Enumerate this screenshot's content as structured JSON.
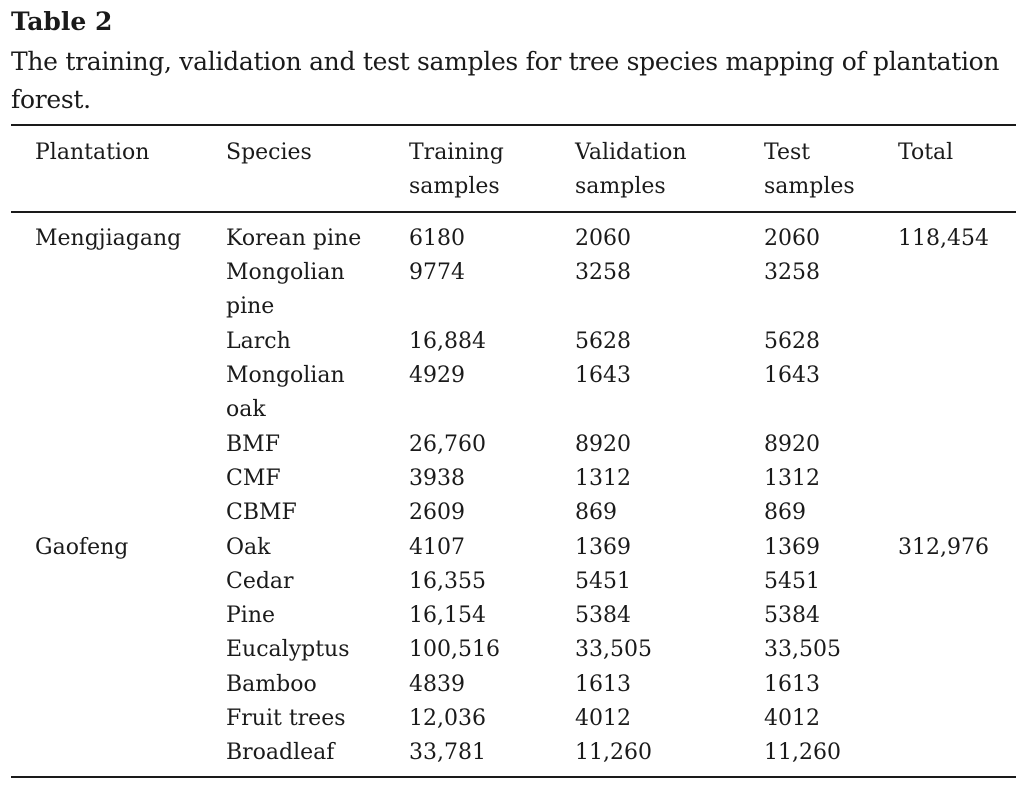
{
  "table": {
    "label": "Table 2",
    "caption": "The training, validation and test samples for tree species mapping of plantation forest.",
    "headers": {
      "plantation": "Plantation",
      "species": "Species",
      "training": "Training samples",
      "validation": "Validation samples",
      "test": "Test samples",
      "total": "Total"
    },
    "groups": [
      {
        "plantation": "Mengjiagang",
        "total": "118,454",
        "rows": [
          {
            "species": "Korean pine",
            "training": "6180",
            "validation": "2060",
            "test": "2060"
          },
          {
            "species": "Mongolian pine",
            "training": "9774",
            "validation": "3258",
            "test": "3258"
          },
          {
            "species": "Larch",
            "training": "16,884",
            "validation": "5628",
            "test": "5628"
          },
          {
            "species": "Mongolian oak",
            "training": "4929",
            "validation": "1643",
            "test": "1643"
          },
          {
            "species": "BMF",
            "training": "26,760",
            "validation": "8920",
            "test": "8920"
          },
          {
            "species": "CMF",
            "training": "3938",
            "validation": "1312",
            "test": "1312"
          },
          {
            "species": "CBMF",
            "training": "2609",
            "validation": "869",
            "test": "869"
          }
        ]
      },
      {
        "plantation": "Gaofeng",
        "total": "312,976",
        "rows": [
          {
            "species": "Oak",
            "training": "4107",
            "validation": "1369",
            "test": "1369"
          },
          {
            "species": "Cedar",
            "training": "16,355",
            "validation": "5451",
            "test": "5451"
          },
          {
            "species": "Pine",
            "training": "16,154",
            "validation": "5384",
            "test": "5384"
          },
          {
            "species": "Eucalyptus",
            "training": "100,516",
            "validation": "33,505",
            "test": "33,505"
          },
          {
            "species": "Bamboo",
            "training": "4839",
            "validation": "1613",
            "test": "1613"
          },
          {
            "species": "Fruit trees",
            "training": "12,036",
            "validation": "4012",
            "test": "4012"
          },
          {
            "species": "Broadleaf",
            "training": "33,781",
            "validation": "11,260",
            "test": "11,260"
          }
        ]
      }
    ]
  }
}
